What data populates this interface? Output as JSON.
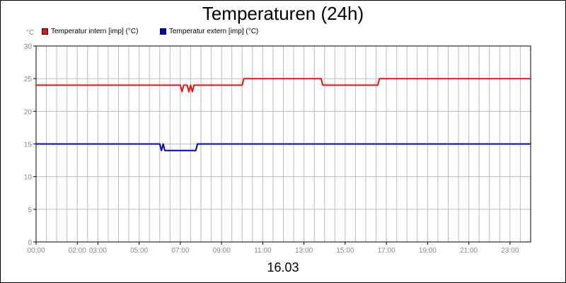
{
  "chart_data": {
    "type": "line",
    "title": "Temperaturen (24h)",
    "ylabel": "°C",
    "xlabel": "16.03",
    "ylim": [
      0,
      30
    ],
    "xlim": [
      "00:00",
      "24:00"
    ],
    "y_ticks": [
      "0",
      "5",
      "10",
      "15",
      "20",
      "25",
      "30"
    ],
    "x_ticks": [
      "00:00",
      "02:00",
      "03:00",
      "05:00",
      "07:00",
      "09:00",
      "11:00",
      "13:00",
      "15:00",
      "17:00",
      "19:00",
      "21:00",
      "23:00"
    ],
    "grid": true,
    "legend_position": "top-left",
    "series": [
      {
        "name": "Temperatur intern [imp] (°C)",
        "color": "#ee1111",
        "points": [
          [
            "00:00",
            24
          ],
          [
            "07:00",
            24
          ],
          [
            "07:05",
            23
          ],
          [
            "07:10",
            24
          ],
          [
            "07:20",
            24
          ],
          [
            "07:25",
            23
          ],
          [
            "07:30",
            24
          ],
          [
            "07:35",
            23
          ],
          [
            "07:40",
            24
          ],
          [
            "10:00",
            24
          ],
          [
            "10:05",
            25
          ],
          [
            "13:50",
            25
          ],
          [
            "13:55",
            24
          ],
          [
            "16:35",
            24
          ],
          [
            "16:40",
            25
          ],
          [
            "24:00",
            25
          ]
        ]
      },
      {
        "name": "Temperatur extern [imp] (°C)",
        "color": "#0000cc",
        "points": [
          [
            "00:00",
            15
          ],
          [
            "06:00",
            15
          ],
          [
            "06:05",
            14
          ],
          [
            "06:10",
            15
          ],
          [
            "06:15",
            14
          ],
          [
            "07:45",
            14
          ],
          [
            "07:50",
            15
          ],
          [
            "24:00",
            15
          ]
        ]
      }
    ]
  }
}
